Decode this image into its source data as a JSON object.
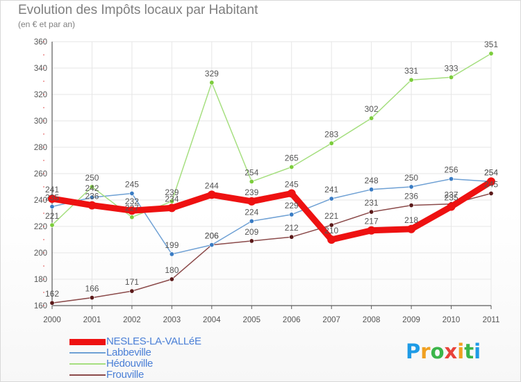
{
  "header": {
    "title": "Evolution des Impôts locaux par Habitant",
    "subtitle": "(en € et par an)"
  },
  "logo": {
    "letters": [
      "P",
      "r",
      "o",
      "x",
      "i",
      "t",
      "i"
    ],
    "colors": [
      "#1e9be6",
      "#f0a020",
      "#3bb54a",
      "#e8423a",
      "#f0a020",
      "#3bb54a",
      "#1e9be6"
    ]
  },
  "colors": {
    "axis": "#5a5a5a",
    "grid": "#e6e6e6",
    "tick_red": "#e05050",
    "label": "#555555"
  },
  "chart_data": {
    "type": "line",
    "title": "Evolution des Impôts locaux par Habitant",
    "subtitle": "(en € et par an)",
    "xlabel": "",
    "ylabel": "",
    "x": [
      "2000",
      "2001",
      "2002",
      "2003",
      "2004",
      "2005",
      "2006",
      "2007",
      "2008",
      "2009",
      "2010",
      "2011"
    ],
    "ylim": [
      160,
      360
    ],
    "yticks": [
      160,
      180,
      200,
      220,
      240,
      260,
      280,
      300,
      320,
      340,
      360
    ],
    "grid": true,
    "legend": "bottom-left",
    "series": [
      {
        "name": "NESLES-LA-VALLéE",
        "values": [
          241,
          236,
          232,
          234,
          244,
          239,
          245,
          210,
          217,
          218,
          235,
          254
        ],
        "color": "#ee1111",
        "marker": "#ee1111",
        "width": 9,
        "labels": true
      },
      {
        "name": "Labbeville",
        "values": [
          235,
          242,
          245,
          199,
          206,
          224,
          229,
          241,
          248,
          250,
          256,
          254
        ],
        "color": "#6ea0d4",
        "marker": "#3a7cc4",
        "width": 1.5,
        "labels": true
      },
      {
        "name": "Hédouville",
        "values": [
          221,
          250,
          227,
          239,
          329,
          254,
          265,
          283,
          302,
          331,
          333,
          351
        ],
        "color": "#a6df80",
        "marker": "#7ccd3c",
        "width": 1.5,
        "labels": true
      },
      {
        "name": "Frouville",
        "values": [
          162,
          166,
          171,
          180,
          206,
          209,
          212,
          221,
          231,
          236,
          237,
          245
        ],
        "color": "#8b4a4a",
        "marker": "#5b1a1a",
        "width": 1.5,
        "labels": true
      }
    ],
    "data_labels": [
      [
        241,
        236,
        232,
        234,
        244,
        239,
        245,
        210,
        217,
        218,
        235,
        254
      ],
      [
        235,
        242,
        245,
        199,
        206,
        224,
        229,
        241,
        248,
        250,
        256,
        254
      ],
      [
        221,
        250,
        227,
        239,
        329,
        254,
        265,
        283,
        302,
        331,
        333,
        351
      ],
      [
        162,
        166,
        171,
        180,
        206,
        209,
        212,
        221,
        231,
        236,
        237,
        245
      ]
    ]
  }
}
